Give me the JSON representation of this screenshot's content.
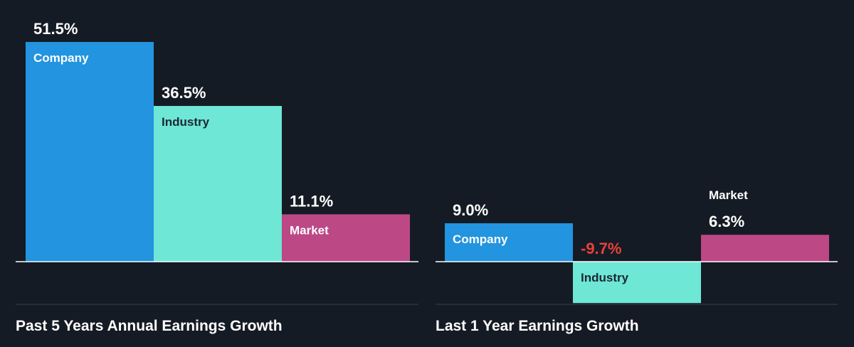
{
  "colors": {
    "background": "#151b24",
    "company": "#2394df",
    "industry": "#6ee7d6",
    "market": "#bc4886",
    "negative_value": "#e8413c",
    "divider": "#3a414b",
    "baseline": "#ffffff"
  },
  "chart_data": [
    {
      "type": "bar",
      "title": "Past 5 Years Annual Earnings Growth",
      "categories": [
        "Company",
        "Industry",
        "Market"
      ],
      "values": [
        51.5,
        36.5,
        11.1
      ],
      "value_labels": [
        "51.5%",
        "36.5%",
        "11.1%"
      ],
      "ylim": [
        0,
        51.5
      ]
    },
    {
      "type": "bar",
      "title": "Last 1 Year Earnings Growth",
      "categories": [
        "Company",
        "Industry",
        "Market"
      ],
      "values": [
        9.0,
        -9.7,
        6.3
      ],
      "value_labels": [
        "9.0%",
        "-9.7%",
        "6.3%"
      ],
      "ylim": [
        -9.7,
        51.5
      ]
    }
  ]
}
